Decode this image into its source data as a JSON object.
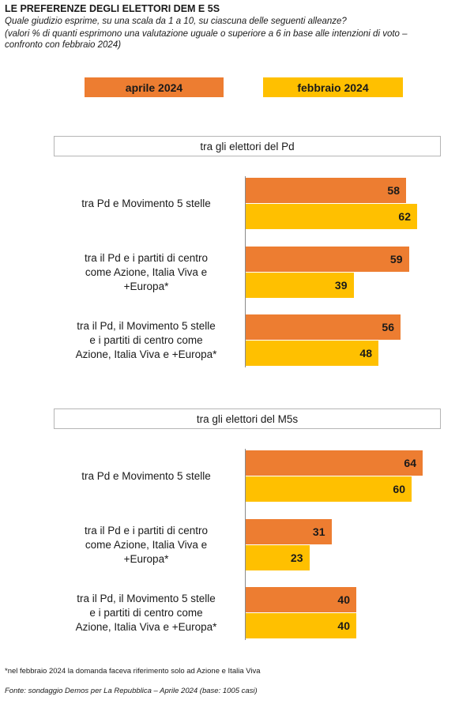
{
  "title": "LE PREFERENZE DEGLI ELETTORI DEM E 5S",
  "subtitle_1": "Quale giudizio esprime, su una scala da 1 a 10, su ciascuna delle seguenti alleanze?",
  "subtitle_2": "(valori % di quanti esprimono una valutazione uguale o superiore a 6 in base alle intenzioni di voto –",
  "subtitle_3": "confronto con febbraio 2024)",
  "legend": {
    "series_a": "aprile 2024",
    "series_b": "febbraio 2024"
  },
  "colors": {
    "aprile": "#ED7D31",
    "febbraio": "#FFC000"
  },
  "chart_data": [
    {
      "type": "bar",
      "orientation": "horizontal",
      "title": "tra gli elettori del Pd",
      "categories": [
        "tra Pd e Movimento 5 stelle",
        "tra il Pd e i partiti di centro come Azione, Italia Viva e +Europa*",
        "tra il Pd, il Movimento 5 stelle e i partiti di centro come Azione, Italia Viva e +Europa*"
      ],
      "series": [
        {
          "name": "aprile 2024",
          "values": [
            58,
            59,
            56
          ]
        },
        {
          "name": "febbraio 2024",
          "values": [
            62,
            39,
            48
          ]
        }
      ]
    },
    {
      "type": "bar",
      "orientation": "horizontal",
      "title": "tra gli elettori del M5s",
      "categories": [
        "tra Pd e Movimento 5 stelle",
        "tra il Pd e i partiti di centro come Azione, Italia Viva e +Europa*",
        "tra il Pd, il Movimento 5 stelle e i partiti di centro come Azione, Italia Viva e +Europa*"
      ],
      "series": [
        {
          "name": "aprile 2024",
          "values": [
            64,
            31,
            40
          ]
        },
        {
          "name": "febbraio 2024",
          "values": [
            60,
            23,
            40
          ]
        }
      ]
    }
  ],
  "footnote": "*nel febbraio 2024 la domanda faceva riferimento solo ad Azione e Italia Viva",
  "source": "Fonte: sondaggio Demos per La Repubblica – Aprile 2024 (base: 1005 casi)"
}
